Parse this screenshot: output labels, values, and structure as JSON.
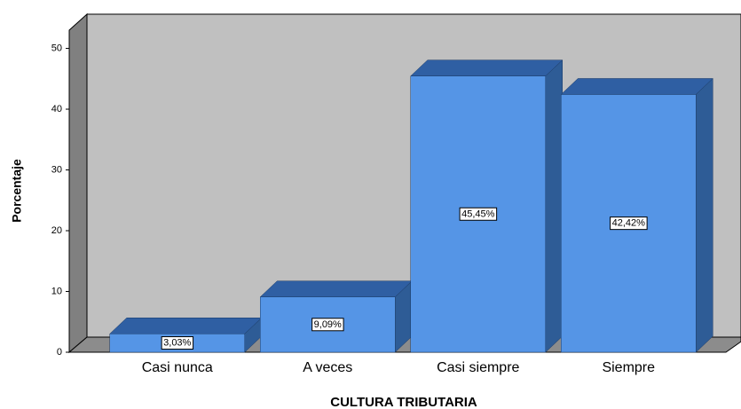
{
  "chart_data": {
    "type": "bar",
    "x_label": "CULTURA TRIBUTARIA",
    "y_label": "Porcentaje",
    "categories": [
      "Casi nunca",
      "A veces",
      "Casi siempre",
      "Siempre"
    ],
    "values": [
      3.03,
      9.09,
      45.45,
      42.42
    ],
    "value_labels": [
      "3,03%",
      "9,09%",
      "45,45%",
      "42,42%"
    ],
    "color": "#5595e6",
    "ylim": [
      0,
      53
    ],
    "yticks": [
      0,
      10,
      20,
      30,
      40,
      50
    ],
    "grid": false
  }
}
